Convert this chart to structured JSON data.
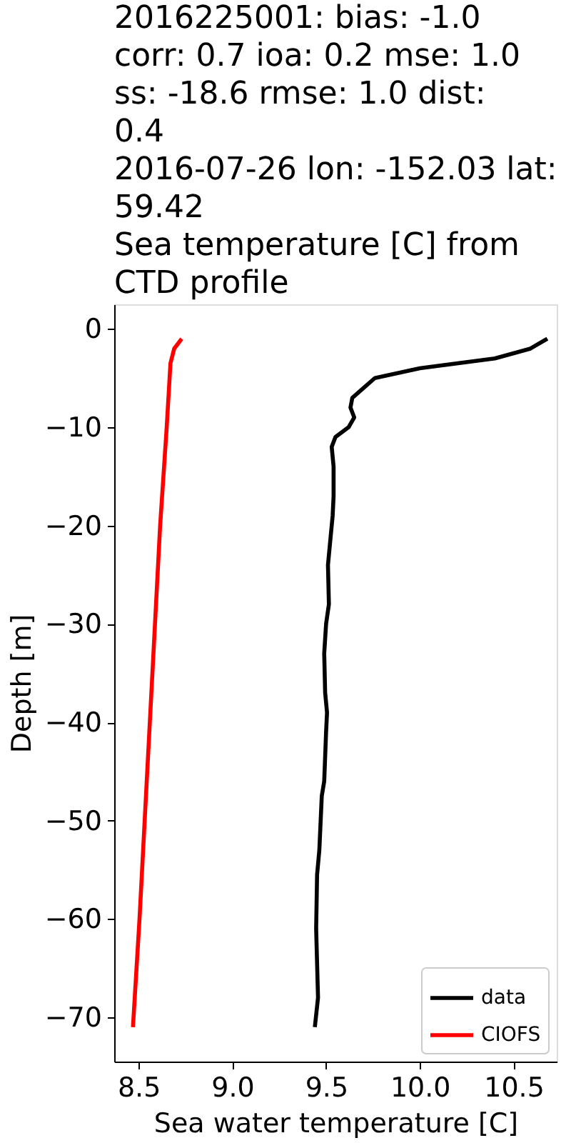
{
  "chart_data": {
    "type": "line",
    "title": "2016225001: bias: -1.0\ncorr: 0.7  ioa: 0.2  mse: 1.0\nss: -18.6  rmse: 1.0  dist:\n0.4\n2016-07-26 lon: -152.03 lat:\n59.42\nSea temperature [C] from\nCTD profile",
    "xlabel": "Sea water temperature [C]",
    "ylabel": "Depth [m]",
    "xlim": [
      8.37,
      10.73
    ],
    "ylim": [
      -74.5,
      2.5
    ],
    "xticks": [
      8.5,
      {
        "value": 9,
        "label": "9.0"
      },
      9.5,
      {
        "value": 10,
        "label": "10.0"
      },
      10.5
    ],
    "yticks": [
      -70,
      -60,
      -50,
      -40,
      -30,
      -20,
      -10,
      0
    ],
    "legend": "bottom right",
    "line_style": "solid",
    "series": [
      {
        "name": "data",
        "color": "#000000",
        "x": [
          10.68,
          10.59,
          10.4,
          10.0,
          9.76,
          9.64,
          9.63,
          9.65,
          9.62,
          9.55,
          9.53,
          9.54,
          9.54,
          9.535,
          9.52,
          9.51,
          9.515,
          9.5,
          9.49,
          9.495,
          9.505,
          9.5,
          9.498,
          9.49,
          9.477,
          9.464,
          9.452,
          9.447,
          9.457,
          9.44
        ],
        "values": [
          -1,
          -2,
          -3,
          -4,
          -5,
          -7,
          -8,
          -9,
          -10,
          -11,
          -12,
          -14,
          -17,
          -19,
          -22,
          -24,
          -28,
          -30,
          -33,
          -37,
          -39,
          -41,
          -42,
          -46,
          -47.5,
          -53,
          -55.5,
          -61,
          -68,
          -71
        ]
      },
      {
        "name": "CIOFS",
        "color": "#ff0000",
        "x": [
          8.73,
          8.69,
          8.67,
          8.65,
          8.615,
          8.56,
          8.505,
          8.47
        ],
        "values": [
          -1,
          -2,
          -3.5,
          -10,
          -20,
          -40,
          -60,
          -71
        ]
      }
    ]
  }
}
